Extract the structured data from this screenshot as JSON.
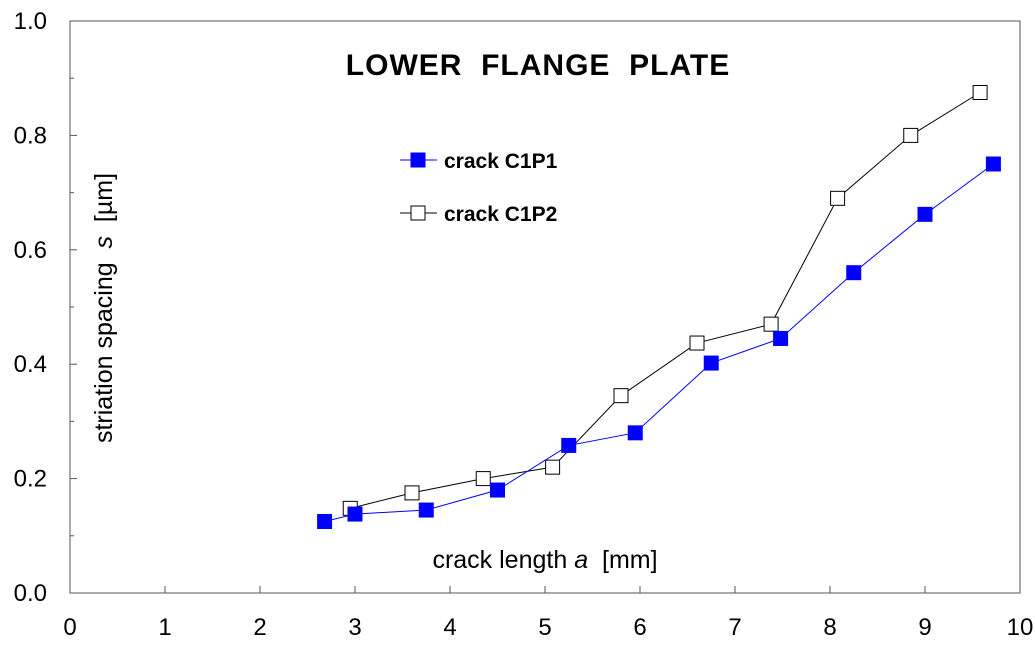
{
  "chart_data": {
    "type": "line",
    "title": "LOWER  FLANGE  PLATE",
    "xlabel": "crack length a  [mm]",
    "ylabel": "striation spacing  s  [µm]",
    "xlim": [
      0,
      10
    ],
    "ylim": [
      0,
      1.0
    ],
    "x_ticks": [
      "0",
      "1",
      "2",
      "3",
      "4",
      "5",
      "6",
      "7",
      "8",
      "9",
      "10"
    ],
    "y_ticks": [
      "0.0",
      "0.2",
      "0.4",
      "0.6",
      "0.8",
      "1.0"
    ],
    "x_tick_values": [
      0,
      1,
      2,
      3,
      4,
      5,
      6,
      7,
      8,
      9,
      10
    ],
    "y_tick_values": [
      0,
      0.2,
      0.4,
      0.6,
      0.8,
      1.0
    ],
    "grid": false,
    "legend_position": "upper-left-center",
    "series": [
      {
        "name": "crack C1P1",
        "color": "#0000ff",
        "marker": "filled-square",
        "x": [
          2.68,
          3.0,
          3.75,
          4.5,
          5.25,
          5.95,
          6.75,
          7.48,
          8.25,
          9.0,
          9.72
        ],
        "y": [
          0.125,
          0.138,
          0.145,
          0.18,
          0.258,
          0.28,
          0.402,
          0.445,
          0.56,
          0.662,
          0.75
        ]
      },
      {
        "name": "crack C1P2",
        "color": "#000000",
        "marker": "open-square",
        "x": [
          2.95,
          3.6,
          4.35,
          5.08,
          5.8,
          6.6,
          7.38,
          8.08,
          8.85,
          9.58
        ],
        "y": [
          0.148,
          0.175,
          0.2,
          0.22,
          0.345,
          0.437,
          0.47,
          0.69,
          0.8,
          0.875
        ]
      }
    ]
  }
}
